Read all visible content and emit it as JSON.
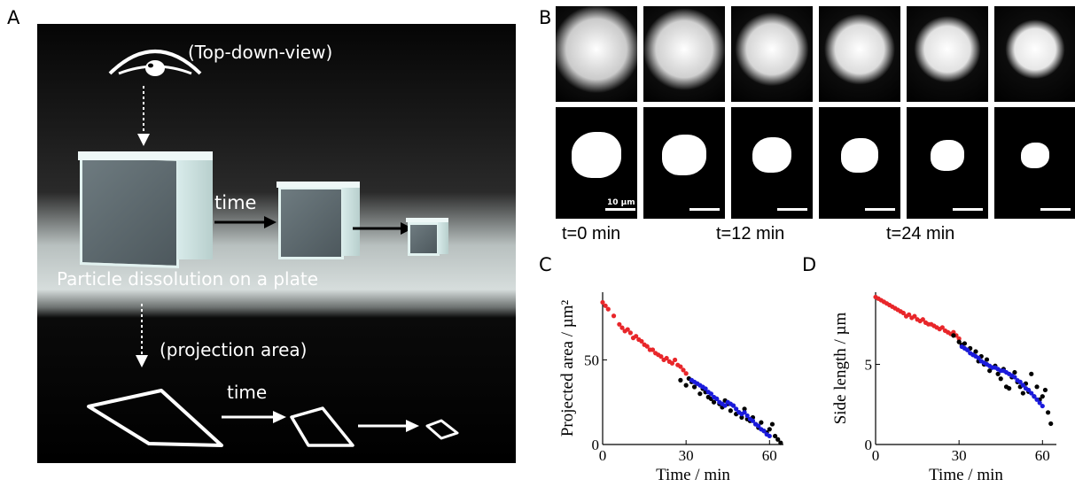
{
  "panels": {
    "a": "A",
    "b": "B",
    "c": "C",
    "d": "D"
  },
  "panel_a": {
    "top_label": "(Top-down-view)",
    "time_label_1": "time",
    "plate_label": "Particle dissolution on a plate",
    "projection_label": "(projection area)",
    "time_label_2": "time"
  },
  "panel_b": {
    "scale_bar": "10 µm",
    "time_labels": [
      "t=0 min",
      "t=12 min",
      "t=24 min"
    ]
  },
  "chart_data": [
    {
      "type": "scatter",
      "panel": "C",
      "xlabel": "Time / min",
      "ylabel": "Projected area / µm²",
      "xlim": [
        0,
        65
      ],
      "ylim": [
        0,
        90
      ],
      "xticks": [
        "0",
        "30",
        "60"
      ],
      "yticks": [
        "0",
        "50"
      ],
      "series": [
        {
          "color": "#e8262a",
          "x": [
            0,
            1,
            2,
            4,
            6,
            7,
            8,
            9,
            10,
            11,
            12,
            13,
            14,
            15,
            16,
            17,
            18,
            19,
            20,
            21,
            22,
            23,
            24,
            25,
            26,
            27,
            28,
            29,
            30
          ],
          "y": [
            84,
            82,
            80,
            76,
            71,
            69,
            67,
            68,
            66,
            63,
            64,
            62,
            61,
            59,
            58,
            56,
            56,
            54,
            53,
            52,
            50,
            51,
            49,
            48,
            50,
            47,
            46,
            44,
            42
          ]
        },
        {
          "color": "#000000",
          "x": [
            28,
            30,
            31,
            32,
            33,
            34,
            35,
            36,
            37,
            38,
            39,
            40,
            41,
            42,
            43,
            44,
            45,
            46,
            47,
            48,
            49,
            50,
            51,
            52,
            53,
            54,
            55,
            56,
            57,
            58,
            59,
            60,
            61,
            62,
            63,
            64
          ],
          "y": [
            38,
            35,
            39,
            37,
            34,
            36,
            30,
            33,
            31,
            28,
            27,
            25,
            27,
            24,
            22,
            26,
            24,
            20,
            23,
            18,
            19,
            16,
            21,
            15,
            14,
            16,
            12,
            10,
            13,
            8,
            7,
            9,
            12,
            5,
            3,
            1
          ]
        },
        {
          "color": "#1a1adc",
          "x": [
            32,
            33,
            34,
            35,
            36,
            37,
            38,
            39,
            40,
            41,
            42,
            43,
            44,
            45,
            46,
            47,
            48,
            49,
            50,
            51,
            52,
            53,
            54,
            55,
            56,
            57,
            58,
            59,
            60
          ],
          "y": [
            38,
            37,
            36,
            35,
            34,
            33,
            31,
            30,
            28,
            27,
            25,
            24,
            23,
            25,
            24,
            23,
            21,
            19,
            18,
            19,
            17,
            15,
            14,
            12,
            11,
            9,
            8,
            6,
            5
          ]
        }
      ]
    },
    {
      "type": "scatter",
      "panel": "D",
      "xlabel": "Time / min",
      "ylabel": "Side length / µm",
      "xlim": [
        0,
        65
      ],
      "ylim": [
        0,
        9.5
      ],
      "xticks": [
        "0",
        "30",
        "60"
      ],
      "yticks": [
        "0",
        "5"
      ],
      "series": [
        {
          "color": "#e8262a",
          "x": [
            0,
            1,
            2,
            3,
            4,
            5,
            6,
            7,
            8,
            9,
            10,
            11,
            12,
            13,
            14,
            15,
            16,
            17,
            18,
            19,
            20,
            21,
            22,
            23,
            24,
            25,
            26,
            27,
            28,
            29,
            30
          ],
          "y": [
            9.2,
            9.1,
            9.0,
            8.9,
            8.8,
            8.7,
            8.6,
            8.5,
            8.4,
            8.3,
            8.2,
            8.0,
            8.1,
            7.9,
            8.0,
            7.8,
            7.7,
            7.8,
            7.6,
            7.5,
            7.5,
            7.4,
            7.3,
            7.2,
            7.3,
            7.1,
            7.0,
            6.9,
            7.0,
            6.8,
            6.6
          ]
        },
        {
          "color": "#000000",
          "x": [
            28,
            30,
            31,
            32,
            33,
            34,
            35,
            36,
            37,
            38,
            39,
            40,
            41,
            42,
            43,
            44,
            45,
            46,
            47,
            48,
            49,
            50,
            51,
            52,
            53,
            54,
            55,
            56,
            57,
            58,
            59,
            60,
            61,
            62,
            63
          ],
          "y": [
            6.8,
            6.4,
            6.2,
            6.3,
            5.9,
            6.0,
            5.6,
            5.8,
            5.2,
            5.5,
            5.0,
            5.3,
            4.6,
            4.8,
            4.9,
            4.4,
            4.1,
            4.7,
            3.6,
            3.5,
            4.2,
            4.5,
            3.9,
            3.6,
            3.2,
            3.8,
            3.3,
            4.4,
            3.0,
            3.6,
            2.8,
            3.0,
            3.4,
            2.0,
            1.3
          ]
        },
        {
          "color": "#1a1adc",
          "x": [
            31,
            32,
            33,
            34,
            35,
            36,
            37,
            38,
            39,
            40,
            41,
            42,
            43,
            44,
            45,
            46,
            47,
            48,
            49,
            50,
            51,
            52,
            53,
            54,
            55,
            56,
            57,
            58,
            59,
            60
          ],
          "y": [
            6.1,
            6.0,
            5.9,
            5.7,
            5.6,
            5.5,
            5.4,
            5.2,
            5.1,
            5.0,
            4.9,
            4.8,
            4.8,
            4.7,
            4.6,
            4.6,
            4.5,
            4.4,
            4.3,
            4.2,
            4.0,
            3.9,
            3.7,
            3.5,
            3.4,
            3.2,
            3.0,
            2.8,
            2.6,
            2.4
          ]
        }
      ]
    }
  ]
}
